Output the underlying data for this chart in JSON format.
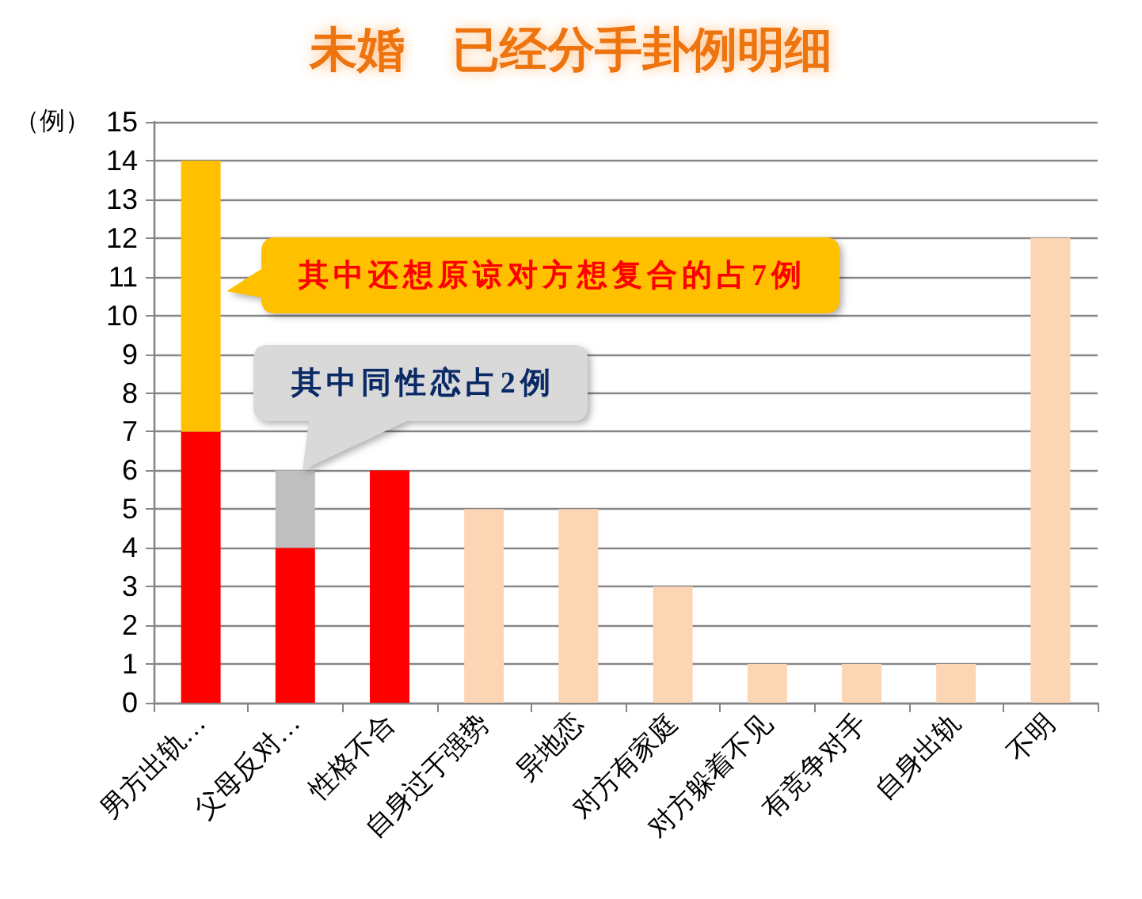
{
  "chart_data": {
    "type": "bar",
    "title": "未婚　已经分手卦例明细",
    "ylabel": "（例）",
    "categories": [
      "男方出轨…",
      "父母反对…",
      "性格不合",
      "自身过于强势",
      "异地恋",
      "对方有家庭",
      "对方躲着不见",
      "有竞争对手",
      "自身出轨",
      "不明"
    ],
    "stacked": true,
    "series": [
      {
        "colors": [
          "#ff0000",
          "#ff0000",
          "#ff0000",
          "#fcd5b5",
          "#fcd5b5",
          "#fcd5b5",
          "#fcd5b5",
          "#fcd5b5",
          "#fcd5b5",
          "#fcd5b5"
        ],
        "values": [
          7,
          4,
          6,
          5,
          5,
          3,
          1,
          1,
          1,
          12
        ]
      },
      {
        "color": "#ffc000",
        "values": [
          7,
          null,
          null,
          null,
          null,
          null,
          null,
          null,
          null,
          null
        ]
      },
      {
        "color": "#bfbfbf",
        "values": [
          null,
          2,
          null,
          null,
          null,
          null,
          null,
          null,
          null,
          null
        ]
      }
    ],
    "ylim": [
      0,
      15
    ],
    "yticks": [
      0,
      1,
      2,
      3,
      4,
      5,
      6,
      7,
      8,
      9,
      10,
      11,
      12,
      13,
      14,
      15
    ],
    "grid": "y",
    "annotations": [
      "其中还想原谅对方想复合的占7例",
      {
        "text": "其中同性恋占2例",
        "x": "父母反对…",
        "y": 6
      }
    ]
  }
}
